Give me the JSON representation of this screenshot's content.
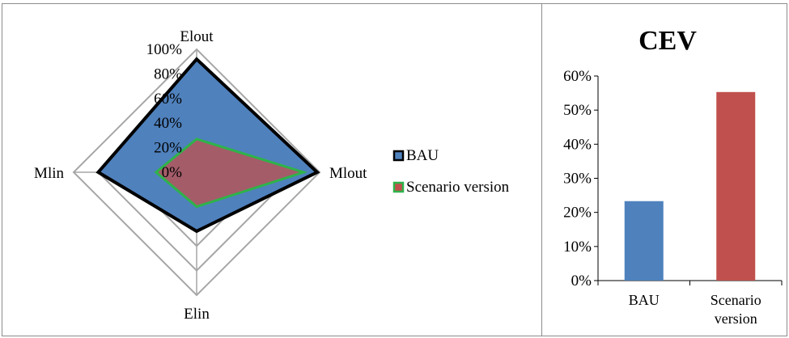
{
  "chart_data": [
    {
      "type": "radar",
      "axes": [
        "Elout",
        "Mlout",
        "Elin",
        "Mlin"
      ],
      "rlabels": [
        "0%",
        "20%",
        "40%",
        "60%",
        "80%",
        "100%"
      ],
      "rlim": [
        0,
        100
      ],
      "series": [
        {
          "name": "BAU",
          "values": [
            92,
            98,
            48,
            80
          ],
          "fill": "#4f81bd",
          "stroke": "#000000"
        },
        {
          "name": "Scenario version",
          "values": [
            27,
            87,
            28,
            33
          ],
          "fill": "#c0504d",
          "stroke": "#2eb34a",
          "fill_opacity": 0.75
        }
      ],
      "legend": {
        "position": "right"
      },
      "grid": true
    },
    {
      "type": "bar",
      "title": "CEV",
      "categories": [
        "BAU",
        "Scenario version"
      ],
      "values": [
        23.3,
        55.3
      ],
      "colors": [
        "#4f81bd",
        "#c0504d"
      ],
      "ylim": [
        0,
        60
      ],
      "yticks": [
        "0%",
        "10%",
        "20%",
        "30%",
        "40%",
        "50%",
        "60%"
      ],
      "grid": false
    }
  ]
}
